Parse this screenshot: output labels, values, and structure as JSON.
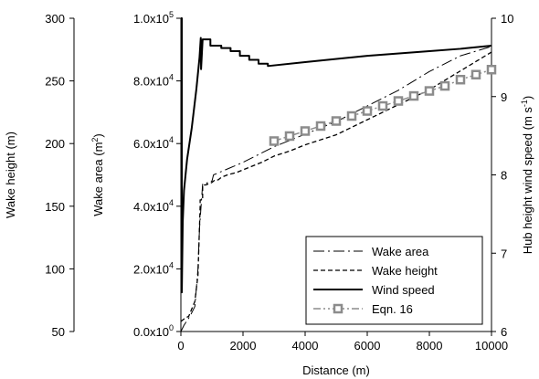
{
  "chart_data": {
    "type": "line",
    "title": "",
    "xlabel": "Distance (m)",
    "xlim": [
      0,
      10000
    ],
    "xticks": [
      "0",
      "2000",
      "4000",
      "6000",
      "8000",
      "10000"
    ],
    "xtick_values": [
      0,
      2000,
      4000,
      6000,
      8000,
      10000
    ],
    "axes": {
      "wake_height": {
        "label": "Wake height (m)",
        "lim": [
          50,
          300
        ],
        "ticks": [
          "50",
          "100",
          "150",
          "200",
          "250",
          "300"
        ],
        "tick_values": [
          50,
          100,
          150,
          200,
          250,
          300
        ]
      },
      "wake_area": {
        "label_main": "Wake area (m",
        "label_sup": "2",
        "label_end": ")",
        "lim": [
          0,
          100000
        ],
        "ticks": [
          {
            "mantissa": "0.0x10",
            "exp": "0"
          },
          {
            "mantissa": "2.0x10",
            "exp": "4"
          },
          {
            "mantissa": "4.0x10",
            "exp": "4"
          },
          {
            "mantissa": "6.0x10",
            "exp": "4"
          },
          {
            "mantissa": "8.0x10",
            "exp": "4"
          },
          {
            "mantissa": "1.0x10",
            "exp": "5"
          }
        ],
        "tick_values": [
          0,
          20000,
          40000,
          60000,
          80000,
          100000
        ]
      },
      "wind_speed": {
        "label_main": "Hub height wind speed (m s",
        "label_sup": "-1",
        "label_end": ")",
        "lim": [
          6,
          10
        ],
        "ticks": [
          "6",
          "7",
          "8",
          "9",
          "10"
        ],
        "tick_values": [
          6,
          7,
          8,
          9,
          10
        ]
      }
    },
    "legend_position": "lower-right",
    "series": [
      {
        "name": "Wake area",
        "axis": "wake_area",
        "style": "dashdot",
        "points": [
          [
            0,
            0
          ],
          [
            100,
            2000
          ],
          [
            300,
            5000
          ],
          [
            450,
            8000
          ],
          [
            550,
            20000
          ],
          [
            600,
            33000
          ],
          [
            700,
            47000
          ],
          [
            800,
            47000
          ],
          [
            900,
            48000
          ],
          [
            1000,
            48000
          ],
          [
            1050,
            50000
          ],
          [
            2000,
            54000
          ],
          [
            3000,
            59000
          ],
          [
            4000,
            63000
          ],
          [
            5000,
            67000
          ],
          [
            6000,
            72000
          ],
          [
            7000,
            77000
          ],
          [
            8000,
            83000
          ],
          [
            9000,
            88000
          ],
          [
            10000,
            91000
          ]
        ]
      },
      {
        "name": "Wake height",
        "axis": "wake_height",
        "style": "dashed",
        "points": [
          [
            0,
            58
          ],
          [
            150,
            61
          ],
          [
            250,
            62
          ],
          [
            350,
            68
          ],
          [
            450,
            74
          ],
          [
            550,
            95
          ],
          [
            620,
            150
          ],
          [
            620,
            155
          ],
          [
            700,
            155
          ],
          [
            700,
            167
          ],
          [
            800,
            167
          ],
          [
            900,
            168
          ],
          [
            1000,
            169
          ],
          [
            1100,
            171
          ],
          [
            1200,
            171
          ],
          [
            1300,
            173
          ],
          [
            1500,
            175
          ],
          [
            1800,
            177
          ],
          [
            2200,
            181
          ],
          [
            2600,
            185
          ],
          [
            3000,
            190
          ],
          [
            3500,
            194
          ],
          [
            4000,
            199
          ],
          [
            5000,
            207
          ],
          [
            6000,
            219
          ],
          [
            7000,
            231
          ],
          [
            8000,
            243
          ],
          [
            9000,
            258
          ],
          [
            10000,
            273
          ]
        ]
      },
      {
        "name": "Wind speed",
        "axis": "wind_speed",
        "style": "solid",
        "points": [
          [
            0,
            10
          ],
          [
            30,
            10
          ],
          [
            30,
            6.5
          ],
          [
            60,
            7.4
          ],
          [
            100,
            7.8
          ],
          [
            200,
            8.2
          ],
          [
            350,
            8.6
          ],
          [
            500,
            9.1
          ],
          [
            600,
            9.5
          ],
          [
            640,
            9.75
          ],
          [
            650,
            9.35
          ],
          [
            700,
            9.73
          ],
          [
            950,
            9.73
          ],
          [
            950,
            9.65
          ],
          [
            1300,
            9.65
          ],
          [
            1300,
            9.62
          ],
          [
            1600,
            9.62
          ],
          [
            1600,
            9.58
          ],
          [
            1900,
            9.58
          ],
          [
            1900,
            9.52
          ],
          [
            2200,
            9.52
          ],
          [
            2200,
            9.47
          ],
          [
            2500,
            9.47
          ],
          [
            2500,
            9.42
          ],
          [
            2800,
            9.42
          ],
          [
            2800,
            9.39
          ],
          [
            4000,
            9.44
          ],
          [
            6000,
            9.52
          ],
          [
            8000,
            9.58
          ],
          [
            9000,
            9.61
          ],
          [
            10000,
            9.65
          ]
        ]
      },
      {
        "name": "Eqn. 16",
        "axis": "wake_height",
        "style": "dashdotdot-squares",
        "points": [
          [
            3000,
            202
          ],
          [
            3500,
            206
          ],
          [
            4000,
            210
          ],
          [
            4500,
            214
          ],
          [
            5000,
            218
          ],
          [
            5500,
            222
          ],
          [
            6000,
            226
          ],
          [
            6500,
            230
          ],
          [
            7000,
            234
          ],
          [
            7500,
            238
          ],
          [
            8000,
            242
          ],
          [
            8500,
            246
          ],
          [
            9000,
            251
          ],
          [
            9500,
            255
          ],
          [
            10000,
            259
          ]
        ]
      }
    ]
  }
}
